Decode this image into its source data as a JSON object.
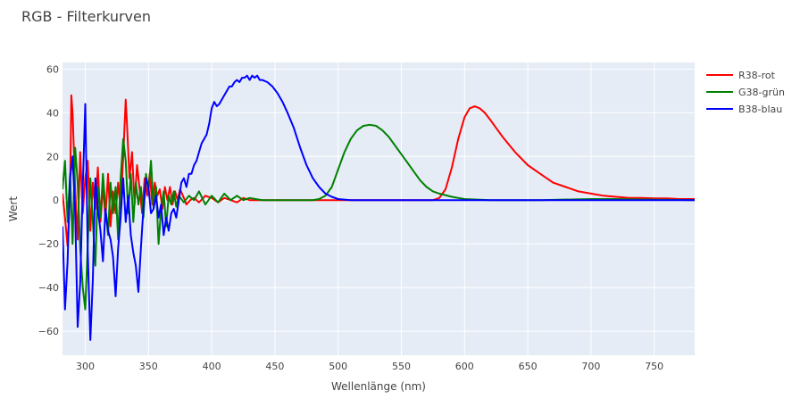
{
  "chart_data": {
    "type": "line",
    "title": "RGB - Filterkurven",
    "xlabel": "Wellenlänge (nm)",
    "ylabel": "Wert",
    "xlim": [
      282,
      782
    ],
    "ylim": [
      -71,
      63
    ],
    "xticks": [
      300,
      350,
      400,
      450,
      500,
      550,
      600,
      650,
      700,
      750
    ],
    "yticks": [
      -60,
      -40,
      -20,
      0,
      20,
      40,
      60
    ],
    "grid": true,
    "legend_position": "top-right",
    "series": [
      {
        "name": "R38-rot",
        "color": "#ff0000",
        "points": [
          [
            282,
            3
          ],
          [
            284,
            -8
          ],
          [
            286,
            -21
          ],
          [
            288,
            4
          ],
          [
            289,
            48
          ],
          [
            290,
            40
          ],
          [
            292,
            5
          ],
          [
            294,
            -18
          ],
          [
            296,
            22
          ],
          [
            298,
            -6
          ],
          [
            300,
            10
          ],
          [
            302,
            18
          ],
          [
            304,
            -14
          ],
          [
            306,
            8
          ],
          [
            308,
            -4
          ],
          [
            310,
            15
          ],
          [
            312,
            -10
          ],
          [
            314,
            6
          ],
          [
            316,
            -8
          ],
          [
            318,
            12
          ],
          [
            320,
            -12
          ],
          [
            322,
            4
          ],
          [
            324,
            -6
          ],
          [
            326,
            8
          ],
          [
            328,
            -4
          ],
          [
            330,
            20
          ],
          [
            332,
            46
          ],
          [
            333,
            35
          ],
          [
            335,
            10
          ],
          [
            337,
            22
          ],
          [
            339,
            -2
          ],
          [
            341,
            16
          ],
          [
            343,
            5
          ],
          [
            345,
            -6
          ],
          [
            347,
            10
          ],
          [
            349,
            2
          ],
          [
            351,
            12
          ],
          [
            353,
            -2
          ],
          [
            355,
            8
          ],
          [
            357,
            2
          ],
          [
            359,
            5
          ],
          [
            361,
            -4
          ],
          [
            363,
            6
          ],
          [
            365,
            0
          ],
          [
            367,
            6
          ],
          [
            369,
            -2
          ],
          [
            371,
            4
          ],
          [
            373,
            0
          ],
          [
            375,
            5
          ],
          [
            378,
            1
          ],
          [
            380,
            -2
          ],
          [
            383,
            0
          ],
          [
            386,
            1
          ],
          [
            390,
            -1
          ],
          [
            395,
            2
          ],
          [
            400,
            1
          ],
          [
            405,
            -1
          ],
          [
            410,
            1
          ],
          [
            415,
            0
          ],
          [
            420,
            -1
          ],
          [
            425,
            1
          ],
          [
            430,
            0
          ],
          [
            440,
            0
          ],
          [
            460,
            0
          ],
          [
            480,
            0
          ],
          [
            500,
            0
          ],
          [
            520,
            0
          ],
          [
            540,
            0
          ],
          [
            560,
            0
          ],
          [
            575,
            0
          ],
          [
            580,
            1
          ],
          [
            585,
            5
          ],
          [
            590,
            15
          ],
          [
            595,
            28
          ],
          [
            600,
            38
          ],
          [
            604,
            42
          ],
          [
            608,
            43
          ],
          [
            612,
            42
          ],
          [
            616,
            40
          ],
          [
            620,
            37
          ],
          [
            625,
            33
          ],
          [
            630,
            29
          ],
          [
            640,
            22
          ],
          [
            650,
            16
          ],
          [
            660,
            12
          ],
          [
            670,
            8
          ],
          [
            680,
            6
          ],
          [
            690,
            4
          ],
          [
            700,
            3
          ],
          [
            710,
            2
          ],
          [
            720,
            1.5
          ],
          [
            730,
            1
          ],
          [
            740,
            1
          ],
          [
            750,
            0.8
          ],
          [
            760,
            0.8
          ],
          [
            770,
            0.5
          ],
          [
            782,
            0.5
          ]
        ]
      },
      {
        "name": "G38-grün",
        "color": "#008000",
        "points": [
          [
            282,
            5
          ],
          [
            284,
            18
          ],
          [
            286,
            -10
          ],
          [
            288,
            12
          ],
          [
            290,
            -20
          ],
          [
            292,
            24
          ],
          [
            294,
            8
          ],
          [
            296,
            -22
          ],
          [
            298,
            -40
          ],
          [
            300,
            -50
          ],
          [
            302,
            -20
          ],
          [
            304,
            10
          ],
          [
            306,
            -10
          ],
          [
            308,
            -30
          ],
          [
            310,
            6
          ],
          [
            312,
            -8
          ],
          [
            314,
            12
          ],
          [
            316,
            -4
          ],
          [
            318,
            -16
          ],
          [
            320,
            8
          ],
          [
            322,
            -6
          ],
          [
            324,
            6
          ],
          [
            326,
            -18
          ],
          [
            328,
            10
          ],
          [
            330,
            28
          ],
          [
            332,
            18
          ],
          [
            334,
            -6
          ],
          [
            336,
            12
          ],
          [
            338,
            -10
          ],
          [
            340,
            8
          ],
          [
            342,
            -2
          ],
          [
            344,
            6
          ],
          [
            346,
            -8
          ],
          [
            348,
            12
          ],
          [
            350,
            4
          ],
          [
            352,
            18
          ],
          [
            354,
            -4
          ],
          [
            356,
            6
          ],
          [
            358,
            -20
          ],
          [
            360,
            -4
          ],
          [
            362,
            4
          ],
          [
            364,
            -12
          ],
          [
            366,
            2
          ],
          [
            368,
            -2
          ],
          [
            370,
            4
          ],
          [
            372,
            -3
          ],
          [
            374,
            2
          ],
          [
            378,
            -1
          ],
          [
            382,
            2
          ],
          [
            386,
            0
          ],
          [
            390,
            4
          ],
          [
            395,
            -2
          ],
          [
            400,
            2
          ],
          [
            405,
            -1
          ],
          [
            410,
            3
          ],
          [
            415,
            0
          ],
          [
            420,
            2
          ],
          [
            425,
            0
          ],
          [
            430,
            1
          ],
          [
            440,
            0
          ],
          [
            460,
            0
          ],
          [
            480,
            0
          ],
          [
            485,
            0.5
          ],
          [
            490,
            2
          ],
          [
            495,
            6
          ],
          [
            500,
            14
          ],
          [
            505,
            22
          ],
          [
            510,
            28
          ],
          [
            515,
            32
          ],
          [
            520,
            34
          ],
          [
            525,
            34.5
          ],
          [
            530,
            34
          ],
          [
            535,
            32
          ],
          [
            540,
            29
          ],
          [
            545,
            25
          ],
          [
            550,
            21
          ],
          [
            555,
            17
          ],
          [
            560,
            13
          ],
          [
            565,
            9
          ],
          [
            570,
            6
          ],
          [
            575,
            4
          ],
          [
            580,
            3
          ],
          [
            590,
            1.5
          ],
          [
            600,
            0.5
          ],
          [
            620,
            0
          ],
          [
            660,
            0
          ],
          [
            700,
            0.5
          ],
          [
            720,
            0.5
          ],
          [
            740,
            0.3
          ],
          [
            782,
            0
          ]
        ]
      },
      {
        "name": "B38-blau",
        "color": "#0000ff",
        "points": [
          [
            282,
            -12
          ],
          [
            284,
            -50
          ],
          [
            286,
            -28
          ],
          [
            288,
            10
          ],
          [
            290,
            20
          ],
          [
            292,
            -6
          ],
          [
            294,
            -58
          ],
          [
            296,
            -38
          ],
          [
            298,
            6
          ],
          [
            300,
            44
          ],
          [
            302,
            -24
          ],
          [
            304,
            -64
          ],
          [
            306,
            -36
          ],
          [
            308,
            10
          ],
          [
            310,
            -4
          ],
          [
            312,
            -14
          ],
          [
            314,
            -28
          ],
          [
            316,
            -4
          ],
          [
            318,
            -14
          ],
          [
            320,
            -18
          ],
          [
            322,
            -26
          ],
          [
            324,
            -44
          ],
          [
            326,
            -22
          ],
          [
            328,
            -8
          ],
          [
            330,
            10
          ],
          [
            332,
            -10
          ],
          [
            334,
            2
          ],
          [
            336,
            -16
          ],
          [
            338,
            -24
          ],
          [
            340,
            -30
          ],
          [
            342,
            -42
          ],
          [
            344,
            -22
          ],
          [
            346,
            -4
          ],
          [
            348,
            10
          ],
          [
            350,
            6
          ],
          [
            352,
            -6
          ],
          [
            354,
            -4
          ],
          [
            356,
            2
          ],
          [
            358,
            -8
          ],
          [
            360,
            -2
          ],
          [
            362,
            -16
          ],
          [
            364,
            -8
          ],
          [
            366,
            -14
          ],
          [
            368,
            -6
          ],
          [
            370,
            -4
          ],
          [
            372,
            -8
          ],
          [
            374,
            0
          ],
          [
            376,
            8
          ],
          [
            378,
            10
          ],
          [
            380,
            6
          ],
          [
            382,
            12
          ],
          [
            384,
            12
          ],
          [
            386,
            16
          ],
          [
            388,
            18
          ],
          [
            390,
            22
          ],
          [
            392,
            26
          ],
          [
            394,
            28
          ],
          [
            396,
            30
          ],
          [
            398,
            35
          ],
          [
            400,
            42
          ],
          [
            402,
            45
          ],
          [
            404,
            43
          ],
          [
            406,
            44
          ],
          [
            408,
            46
          ],
          [
            410,
            48
          ],
          [
            412,
            50
          ],
          [
            414,
            52
          ],
          [
            416,
            52
          ],
          [
            418,
            54
          ],
          [
            420,
            55
          ],
          [
            422,
            54
          ],
          [
            424,
            56
          ],
          [
            426,
            56
          ],
          [
            428,
            57
          ],
          [
            430,
            55
          ],
          [
            432,
            57
          ],
          [
            434,
            56
          ],
          [
            436,
            57
          ],
          [
            438,
            55
          ],
          [
            440,
            55
          ],
          [
            444,
            54
          ],
          [
            448,
            52
          ],
          [
            452,
            49
          ],
          [
            456,
            45
          ],
          [
            460,
            40
          ],
          [
            465,
            33
          ],
          [
            470,
            24
          ],
          [
            475,
            16
          ],
          [
            480,
            10
          ],
          [
            485,
            6
          ],
          [
            490,
            3
          ],
          [
            495,
            1.5
          ],
          [
            500,
            0.5
          ],
          [
            510,
            0
          ],
          [
            600,
            0
          ],
          [
            700,
            0
          ],
          [
            782,
            0
          ]
        ]
      }
    ]
  }
}
